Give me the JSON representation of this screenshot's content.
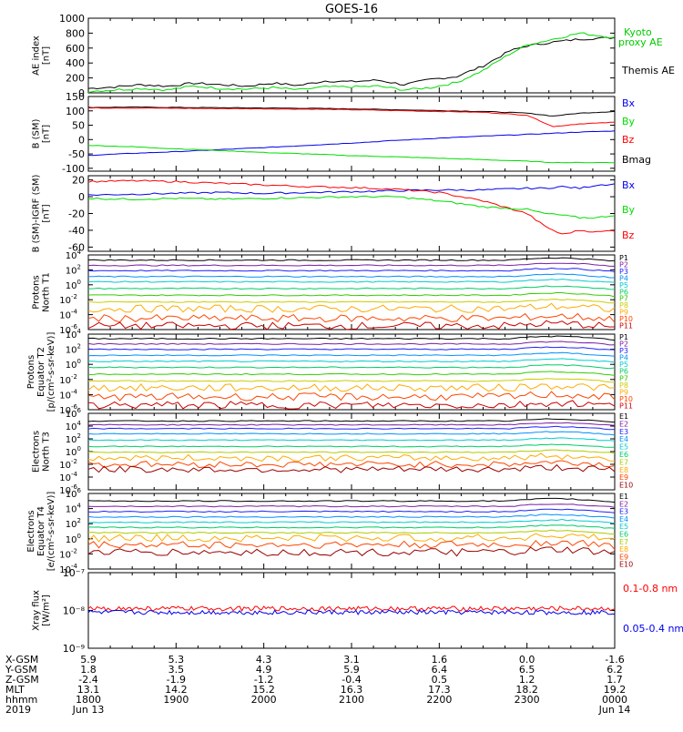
{
  "title": "GOES-16",
  "colors": {
    "black": "#000000",
    "red": "#ff0000",
    "green": "#00dd00",
    "blue": "#0000ee",
    "green_label": "#00cc00"
  },
  "chart_data": [
    {
      "type": "line",
      "id": "ae",
      "ylabel": [
        "AE index",
        "[nT]"
      ],
      "ylim": [
        0,
        1000
      ],
      "ticks": [
        "1000",
        "800",
        "600",
        "400",
        "200",
        "0"
      ],
      "tick_values": [
        1000,
        800,
        600,
        400,
        200,
        0
      ],
      "legend": [
        "Kyoto",
        "proxy AE",
        "Themis AE"
      ],
      "x": [
        0,
        0.3,
        0.6,
        0.9,
        1.2,
        1.5,
        1.8,
        2.1,
        2.4,
        2.7,
        3.0,
        3.3,
        3.6,
        3.9,
        4.2,
        4.5,
        4.8,
        5.0,
        5.3,
        5.6,
        6.0
      ],
      "series": [
        {
          "name": "Themis AE",
          "color": "#000000",
          "values": [
            60,
            80,
            110,
            90,
            130,
            110,
            90,
            130,
            100,
            160,
            150,
            170,
            110,
            180,
            220,
            360,
            560,
            630,
            680,
            720,
            740
          ]
        },
        {
          "name": "Kyoto proxy AE",
          "color": "#00dd00",
          "values": [
            20,
            40,
            60,
            40,
            90,
            60,
            50,
            70,
            40,
            80,
            80,
            90,
            40,
            70,
            140,
            300,
            520,
            640,
            720,
            800,
            740
          ]
        }
      ]
    },
    {
      "type": "line",
      "id": "bsm",
      "ylabel": [
        "B (SM)",
        "[nT]"
      ],
      "ylim": [
        -110,
        150
      ],
      "ticks": [
        "150",
        "100",
        "50",
        "0",
        "-50",
        "-100"
      ],
      "tick_values": [
        150,
        100,
        50,
        0,
        -50,
        -100
      ],
      "legend": [
        "Bx",
        "By",
        "Bz",
        "Bmag"
      ],
      "x": [
        0,
        0.5,
        1,
        1.5,
        2,
        2.5,
        3,
        3.5,
        4,
        4.5,
        5,
        5.3,
        5.6,
        6
      ],
      "series": [
        {
          "name": "Bmag",
          "color": "#000000",
          "values": [
            112,
            113,
            112,
            111,
            110,
            109,
            107,
            104,
            101,
            98,
            92,
            82,
            92,
            98
          ]
        },
        {
          "name": "Bz",
          "color": "#ff0000",
          "values": [
            110,
            110,
            109,
            108,
            107,
            106,
            104,
            101,
            98,
            95,
            85,
            45,
            55,
            60
          ]
        },
        {
          "name": "Bx",
          "color": "#0000ee",
          "values": [
            -55,
            -48,
            -42,
            -35,
            -28,
            -20,
            -12,
            -3,
            5,
            12,
            18,
            22,
            26,
            30
          ]
        },
        {
          "name": "By",
          "color": "#00dd00",
          "values": [
            -20,
            -25,
            -32,
            -38,
            -45,
            -50,
            -56,
            -60,
            -65,
            -70,
            -75,
            -80,
            -80,
            -80
          ]
        }
      ]
    },
    {
      "type": "line",
      "id": "bigrf",
      "ylabel": [
        "B (SM)-IGRF (SM)",
        "[nT]"
      ],
      "ylim": [
        -65,
        25
      ],
      "ticks": [
        "20",
        "0",
        "-20",
        "-40",
        "-60"
      ],
      "tick_values": [
        20,
        0,
        -20,
        -40,
        -60
      ],
      "legend": [
        "Bx",
        "By",
        "Bz"
      ],
      "x": [
        0,
        0.5,
        1,
        1.5,
        2,
        2.5,
        3,
        3.5,
        4,
        4.5,
        5,
        5.2,
        5.4,
        5.6,
        5.8,
        6
      ],
      "series": [
        {
          "name": "Bx",
          "color": "#0000ee",
          "values": [
            2,
            3,
            4,
            5,
            4,
            5,
            6,
            7,
            8,
            8,
            10,
            10,
            12,
            10,
            14,
            15
          ]
        },
        {
          "name": "Bz",
          "color": "#ff0000",
          "values": [
            18,
            19,
            18,
            16,
            14,
            12,
            11,
            9,
            5,
            -5,
            -20,
            -35,
            -45,
            -40,
            -42,
            -40
          ]
        },
        {
          "name": "By",
          "color": "#00dd00",
          "values": [
            -2,
            -3,
            -2,
            -3,
            -2,
            -1,
            0,
            0,
            -5,
            -12,
            -15,
            -20,
            -22,
            -25,
            -25,
            -22
          ]
        }
      ]
    },
    {
      "type": "line",
      "id": "prot1",
      "log": true,
      "ylabel": [
        "Protons",
        "North T1"
      ],
      "ylim": [
        -6,
        4
      ],
      "ticks": [
        "4",
        "2",
        "0",
        "-2",
        "-4",
        "-6"
      ],
      "tick_values": [
        4,
        2,
        0,
        -2,
        -4,
        -6
      ],
      "legend": [
        "P1",
        "P2",
        "P3",
        "P4",
        "P5",
        "P6",
        "P7",
        "P8",
        "P9",
        "P10",
        "P11"
      ],
      "series_log": [
        3.3,
        2.6,
        1.9,
        1.1,
        0.4,
        -0.5,
        -1.4,
        -2.3,
        -3.2,
        -4.5,
        -5.5
      ],
      "colors": [
        "#000000",
        "#7a1fa2",
        "#2020ff",
        "#0090ff",
        "#00cccc",
        "#00cc66",
        "#33cc00",
        "#cccc00",
        "#ffaa00",
        "#ff4400",
        "#cc0000"
      ]
    },
    {
      "type": "line",
      "id": "prot2",
      "log": true,
      "ylabel": [
        "Protons",
        "Equator T2",
        "[p/(cm²-s-sr-keV)]"
      ],
      "ylim": [
        -6,
        4
      ],
      "ticks": [
        "4",
        "2",
        "0",
        "-2",
        "-4",
        "-6"
      ],
      "tick_values": [
        4,
        2,
        0,
        -2,
        -4,
        -6
      ],
      "legend": [
        "P1",
        "P2",
        "P3",
        "P4",
        "P5",
        "P6",
        "P7",
        "P8",
        "P9",
        "P10",
        "P11"
      ],
      "series_log": [
        3.4,
        2.7,
        2.0,
        1.2,
        0.4,
        -0.4,
        -1.3,
        -2.2,
        -3.1,
        -4.3,
        -5.4
      ],
      "colors": [
        "#000000",
        "#7a1fa2",
        "#2020ff",
        "#0090ff",
        "#00cccc",
        "#00cc66",
        "#33cc00",
        "#cccc00",
        "#ffaa00",
        "#ff4400",
        "#cc0000"
      ]
    },
    {
      "type": "line",
      "id": "elec3",
      "log": true,
      "ylabel": [
        "Electrons",
        "North T3"
      ],
      "ylim": [
        -6,
        6
      ],
      "ticks": [
        "6",
        "4",
        "2",
        "0",
        "-2",
        "-4",
        "-6"
      ],
      "tick_values": [
        6,
        4,
        2,
        0,
        -2,
        -4,
        -6
      ],
      "legend": [
        "E1",
        "E2",
        "E3",
        "E4",
        "E5",
        "E6",
        "E7",
        "E8",
        "E9",
        "E10"
      ],
      "series_log": [
        4.8,
        4.2,
        3.6,
        2.8,
        1.8,
        0.8,
        -0.1,
        -1.0,
        -2.0,
        -2.8
      ],
      "colors": [
        "#000000",
        "#7a1fa2",
        "#2020ff",
        "#0090ff",
        "#00cccc",
        "#00cc66",
        "#aacc00",
        "#ffaa00",
        "#ff4400",
        "#990000"
      ]
    },
    {
      "type": "line",
      "id": "elec4",
      "log": true,
      "ylabel": [
        "Electrons",
        "Equator T4",
        "[e/(cm²-s-sr-keV)]"
      ],
      "ylim": [
        -4,
        6
      ],
      "ticks": [
        "6",
        "4",
        "2",
        "0",
        "-2",
        "-4"
      ],
      "tick_values": [
        6,
        4,
        2,
        0,
        -2,
        -4
      ],
      "legend": [
        "E1",
        "E2",
        "E3",
        "E4",
        "E5",
        "E6",
        "E7",
        "E8",
        "E9",
        "E10"
      ],
      "series_log": [
        5.0,
        4.3,
        3.6,
        2.9,
        2.2,
        1.5,
        0.8,
        0.1,
        -0.8,
        -1.8
      ],
      "colors": [
        "#000000",
        "#7a1fa2",
        "#2020ff",
        "#0090ff",
        "#00cccc",
        "#00cc66",
        "#aacc00",
        "#ffaa00",
        "#ff4400",
        "#990000"
      ]
    },
    {
      "type": "line",
      "id": "xray",
      "log": true,
      "ylabel": [
        "Xray flux",
        "[W/m²]"
      ],
      "ylim": [
        -9,
        -7
      ],
      "ticks": [
        "10⁻⁷",
        "10⁻⁸",
        "10⁻⁹"
      ],
      "tick_values": [
        -7,
        -8,
        -9
      ],
      "legend": [
        "0.1-0.8 nm",
        "0.05-0.4 nm"
      ],
      "series_log": [
        -7.95,
        -8.05
      ],
      "colors": [
        "#ff0000",
        "#0000ee"
      ]
    }
  ],
  "x_axis": {
    "row_labels": [
      "X-GSM",
      "Y-GSM",
      "Z-GSM",
      "MLT",
      "hhmm",
      "2019"
    ],
    "columns": [
      [
        "5.9",
        "1.8",
        "-2.4",
        "13.1",
        "1800",
        "Jun 13"
      ],
      [
        "5.3",
        "3.5",
        "-1.9",
        "14.2",
        "1900",
        ""
      ],
      [
        "4.3",
        "4.9",
        "-1.2",
        "15.2",
        "2000",
        ""
      ],
      [
        "3.1",
        "5.9",
        "-0.4",
        "16.3",
        "2100",
        ""
      ],
      [
        "1.6",
        "6.4",
        "0.5",
        "17.3",
        "2200",
        ""
      ],
      [
        "0.0",
        "6.5",
        "1.2",
        "18.2",
        "2300",
        ""
      ],
      [
        "-1.6",
        "6.2",
        "1.7",
        "19.2",
        "0000",
        "Jun 14"
      ]
    ]
  }
}
